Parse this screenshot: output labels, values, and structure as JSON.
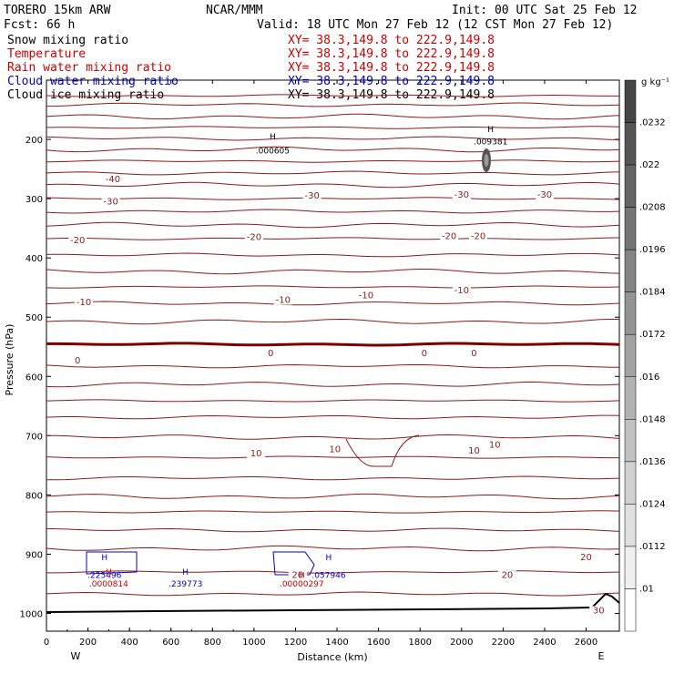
{
  "header": {
    "model": "TORERO   15km ARW",
    "center": "NCAR/MMM",
    "init": "Init: 00 UTC Sat 25 Feb 12",
    "fcst": "Fcst:   66 h",
    "valid": "Valid: 18 UTC Mon 27 Feb 12 (12 CST Mon 27 Feb 12)"
  },
  "legend": [
    {
      "name": "Snow mixing ratio",
      "xy": "XY=  38.3,149.8 to 222.9,149.8",
      "name_color": "#000000",
      "xy_color": "#cc0000"
    },
    {
      "name": "Temperature",
      "xy": "XY=  38.3,149.8 to 222.9,149.8",
      "name_color": "#cc0000",
      "xy_color": "#cc0000"
    },
    {
      "name": "Rain water mixing ratio",
      "xy": "XY=  38.3,149.8 to 222.9,149.8",
      "name_color": "#cc0000",
      "xy_color": "#cc0000"
    },
    {
      "name": "Cloud water mixing ratio",
      "xy": "XY=  38.3,149.8 to 222.9,149.8",
      "name_color": "#0000cc",
      "xy_color": "#0000cc"
    },
    {
      "name": "Cloud ice mixing ratio",
      "xy": "XY=  38.3,149.8 to 222.9,149.8",
      "name_color": "#000000",
      "xy_color": "#000000"
    }
  ],
  "colorbar": {
    "unit": "g kg⁻¹",
    "ticks": [
      ".0232",
      ".022",
      ".0208",
      ".0196",
      ".0184",
      ".0172",
      ".016",
      ".0148",
      ".0136",
      ".0124",
      ".0112",
      ".01"
    ]
  },
  "chart_data": {
    "type": "line",
    "title": "Snow mixing ratio",
    "xlabel": "Distance (km)",
    "ylabel": "Pressure (hPa)",
    "x_ticks": [
      0,
      200,
      400,
      600,
      800,
      1000,
      1200,
      1400,
      1600,
      1800,
      2000,
      2200,
      2400,
      2600
    ],
    "y_ticks": [
      200,
      300,
      400,
      500,
      600,
      700,
      800,
      900,
      1000
    ],
    "xlim": [
      0,
      2760
    ],
    "ylim": [
      100,
      1030
    ],
    "x_end_labels": {
      "left": "W",
      "right": "E"
    },
    "temperature_contour_labels": [
      {
        "text": "-40",
        "x": 320,
        "y": 272
      },
      {
        "text": "-30",
        "x": 310,
        "y": 310
      },
      {
        "text": "-30",
        "x": 1280,
        "y": 300
      },
      {
        "text": "-30",
        "x": 2000,
        "y": 298
      },
      {
        "text": "-30",
        "x": 2400,
        "y": 298
      },
      {
        "text": "-20",
        "x": 150,
        "y": 375
      },
      {
        "text": "-20",
        "x": 1000,
        "y": 370
      },
      {
        "text": "-20",
        "x": 1940,
        "y": 368
      },
      {
        "text": "-20",
        "x": 2080,
        "y": 368
      },
      {
        "text": "-10",
        "x": 180,
        "y": 480
      },
      {
        "text": "-10",
        "x": 1140,
        "y": 476
      },
      {
        "text": "-10",
        "x": 1540,
        "y": 468
      },
      {
        "text": "-10",
        "x": 2000,
        "y": 460
      },
      {
        "text": "0",
        "x": 150,
        "y": 578
      },
      {
        "text": "0",
        "x": 1080,
        "y": 566
      },
      {
        "text": "0",
        "x": 1820,
        "y": 566
      },
      {
        "text": "0",
        "x": 2060,
        "y": 566
      },
      {
        "text": "10",
        "x": 1010,
        "y": 735
      },
      {
        "text": "10",
        "x": 1390,
        "y": 728
      },
      {
        "text": "10",
        "x": 2060,
        "y": 730
      },
      {
        "text": "10",
        "x": 2160,
        "y": 720
      },
      {
        "text": "20",
        "x": 1210,
        "y": 940
      },
      {
        "text": "20",
        "x": 2220,
        "y": 940
      },
      {
        "text": "20",
        "x": 2600,
        "y": 910
      },
      {
        "text": "30",
        "x": 2660,
        "y": 1000
      }
    ],
    "maxima": [
      {
        "label": "H",
        "value": ".000605",
        "color": "#000000",
        "x": 1090,
        "y": 200,
        "vy": 224
      },
      {
        "label": "H",
        "value": ".009381",
        "color": "#000000",
        "x": 2140,
        "y": 188,
        "vy": 208
      },
      {
        "label": "H",
        "value": ".225496",
        "color": "#0000cc",
        "x": 280,
        "y": 910,
        "vy": 940
      },
      {
        "label": "H",
        "value": ".0000814",
        "color": "#cc0000",
        "x": 300,
        "y": 935,
        "vy": 955
      },
      {
        "label": "H",
        "value": ".239773",
        "color": "#0000cc",
        "x": 670,
        "y": 935,
        "vy": 955
      },
      {
        "label": "H",
        "value": ".057946",
        "color": "#0000cc",
        "x": 1360,
        "y": 910,
        "vy": 940
      },
      {
        "label": "H",
        "value": ".00000297",
        "color": "#cc0000",
        "x": 1230,
        "y": 940,
        "vy": 955
      }
    ]
  }
}
